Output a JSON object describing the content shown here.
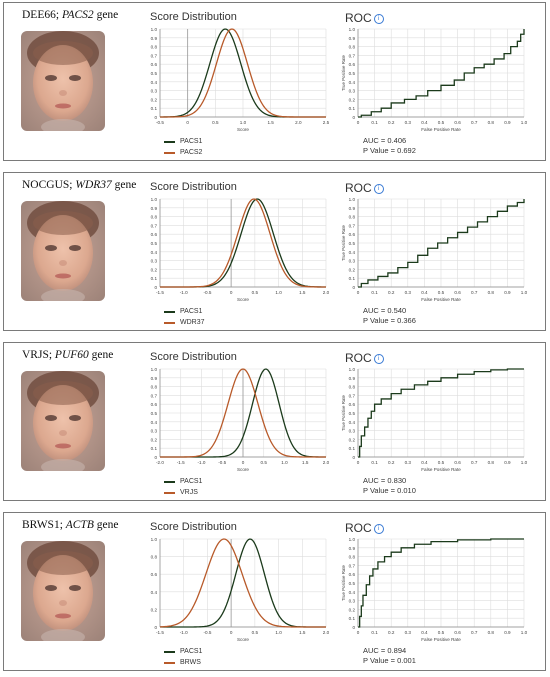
{
  "colors": {
    "pacs1": "#1b3a1b",
    "comparison": "#b85a2a",
    "grid": "#dddddd",
    "axis": "#888888"
  },
  "labels": {
    "score_distribution": "Score Distribution",
    "roc": "ROC",
    "info_icon": "info-icon",
    "score_axis": "Score",
    "fpr_axis": "False Positive Rate",
    "tpr_axis": "True Positive Rate",
    "auc_prefix": "AUC = ",
    "p_prefix": "P Value = "
  },
  "panels": [
    {
      "title_prefix": "DEE66; ",
      "title_gene": "PACS2",
      "title_suffix": " gene",
      "legend": [
        "PACS1",
        "PACS2"
      ],
      "auc": "0.406",
      "p_value": "0.692"
    },
    {
      "title_prefix": "NOCGUS; ",
      "title_gene": "WDR37",
      "title_suffix": " gene",
      "legend": [
        "PACS1",
        "WDR37"
      ],
      "auc": "0.540",
      "p_value": "0.366"
    },
    {
      "title_prefix": "VRJS; ",
      "title_gene": "PUF60",
      "title_suffix": " gene",
      "legend": [
        "PACS1",
        "VRJS"
      ],
      "auc": "0.830",
      "p_value": "0.010"
    },
    {
      "title_prefix": "BRWS1; ",
      "title_gene": "ACTB",
      "title_suffix": " gene",
      "legend": [
        "PACS1",
        "BRWS"
      ],
      "auc": "0.894",
      "p_value": "0.001"
    }
  ],
  "chart_data": [
    {
      "panel": 0,
      "type": "line",
      "title": "Score Distribution",
      "xlabel": "Score",
      "xticks": [
        "-0.5",
        "0",
        "0.5",
        "1.0",
        "1.5",
        "2.0",
        "2.5"
      ],
      "xlim": [
        -0.5,
        2.5
      ],
      "yticks": [
        "0",
        "0.1",
        "0.2",
        "0.3",
        "0.4",
        "0.5",
        "0.6",
        "0.7",
        "0.8",
        "0.9",
        "1.0"
      ],
      "ylim": [
        0,
        1.0
      ],
      "series": [
        {
          "name": "PACS1",
          "mean": 0.68,
          "sd": 0.28
        },
        {
          "name": "PACS2",
          "mean": 0.8,
          "sd": 0.28
        }
      ]
    },
    {
      "panel": 0,
      "type": "line",
      "title": "ROC",
      "xlabel": "False Positive Rate",
      "ylabel": "True Positive Rate",
      "xticks": [
        "0",
        "0.1",
        "0.2",
        "0.3",
        "0.4",
        "0.5",
        "0.6",
        "0.7",
        "0.8",
        "0.9",
        "1.0"
      ],
      "xlim": [
        0,
        1
      ],
      "yticks": [
        "0",
        "0.1",
        "0.2",
        "0.3",
        "0.4",
        "0.5",
        "0.6",
        "0.7",
        "0.8",
        "0.9",
        "1.0"
      ],
      "ylim": [
        0,
        1
      ],
      "x": [
        0,
        0.02,
        0.08,
        0.14,
        0.2,
        0.28,
        0.35,
        0.42,
        0.5,
        0.58,
        0.64,
        0.7,
        0.76,
        0.82,
        0.88,
        0.92,
        0.96,
        0.98,
        1.0
      ],
      "y": [
        0,
        0.02,
        0.06,
        0.1,
        0.16,
        0.2,
        0.24,
        0.3,
        0.36,
        0.42,
        0.5,
        0.56,
        0.6,
        0.66,
        0.72,
        0.8,
        0.86,
        0.94,
        1.0
      ]
    },
    {
      "panel": 1,
      "type": "line",
      "title": "Score Distribution",
      "xlabel": "Score",
      "xticks": [
        "-1.5",
        "-1.0",
        "-0.5",
        "0",
        "0.5",
        "1.0",
        "1.5",
        "2.0"
      ],
      "xlim": [
        -1.5,
        2.0
      ],
      "yticks": [
        "0",
        "0.1",
        "0.2",
        "0.3",
        "0.4",
        "0.5",
        "0.6",
        "0.7",
        "0.8",
        "0.9",
        "1.0"
      ],
      "ylim": [
        0,
        1.0
      ],
      "series": [
        {
          "name": "PACS1",
          "mean": 0.55,
          "sd": 0.34
        },
        {
          "name": "WDR37",
          "mean": 0.48,
          "sd": 0.34
        }
      ]
    },
    {
      "panel": 1,
      "type": "line",
      "title": "ROC",
      "xlabel": "False Positive Rate",
      "ylabel": "True Positive Rate",
      "xticks": [
        "0",
        "0.1",
        "0.2",
        "0.3",
        "0.4",
        "0.5",
        "0.6",
        "0.7",
        "0.8",
        "0.9",
        "1.0"
      ],
      "xlim": [
        0,
        1
      ],
      "yticks": [
        "0",
        "0.1",
        "0.2",
        "0.3",
        "0.4",
        "0.5",
        "0.6",
        "0.7",
        "0.8",
        "0.9",
        "1.0"
      ],
      "ylim": [
        0,
        1
      ],
      "x": [
        0,
        0.02,
        0.06,
        0.12,
        0.18,
        0.24,
        0.3,
        0.36,
        0.42,
        0.48,
        0.54,
        0.6,
        0.66,
        0.72,
        0.78,
        0.84,
        0.9,
        0.96,
        1.0
      ],
      "y": [
        0,
        0.04,
        0.08,
        0.12,
        0.16,
        0.22,
        0.28,
        0.36,
        0.44,
        0.5,
        0.56,
        0.62,
        0.68,
        0.74,
        0.8,
        0.86,
        0.92,
        0.96,
        1.0
      ]
    },
    {
      "panel": 2,
      "type": "line",
      "title": "Score Distribution",
      "xlabel": "Score",
      "xticks": [
        "-2.0",
        "-1.5",
        "-1.0",
        "-0.5",
        "0",
        "0.5",
        "1.0",
        "1.5",
        "2.0"
      ],
      "xlim": [
        -2.0,
        2.0
      ],
      "yticks": [
        "0",
        "0.1",
        "0.2",
        "0.3",
        "0.4",
        "0.5",
        "0.6",
        "0.7",
        "0.8",
        "0.9",
        "1.0"
      ],
      "ylim": [
        0,
        1.0
      ],
      "series": [
        {
          "name": "PACS1",
          "mean": 0.55,
          "sd": 0.32
        },
        {
          "name": "VRJS",
          "mean": 0.0,
          "sd": 0.36
        }
      ]
    },
    {
      "panel": 2,
      "type": "line",
      "title": "ROC",
      "xlabel": "False Positive Rate",
      "ylabel": "True Positive Rate",
      "xticks": [
        "0",
        "0.1",
        "0.2",
        "0.3",
        "0.4",
        "0.5",
        "0.6",
        "0.7",
        "0.8",
        "0.9",
        "1.0"
      ],
      "xlim": [
        0,
        1
      ],
      "yticks": [
        "0",
        "0.1",
        "0.2",
        "0.3",
        "0.4",
        "0.5",
        "0.6",
        "0.7",
        "0.8",
        "0.9",
        "1.0"
      ],
      "ylim": [
        0,
        1
      ],
      "x": [
        0,
        0.01,
        0.02,
        0.04,
        0.06,
        0.08,
        0.1,
        0.14,
        0.2,
        0.26,
        0.34,
        0.42,
        0.5,
        0.6,
        0.7,
        0.8,
        0.9,
        1.0
      ],
      "y": [
        0,
        0.12,
        0.24,
        0.34,
        0.44,
        0.52,
        0.6,
        0.66,
        0.72,
        0.77,
        0.82,
        0.86,
        0.9,
        0.94,
        0.97,
        0.99,
        1.0,
        1.0
      ]
    },
    {
      "panel": 3,
      "type": "line",
      "title": "Score Distribution",
      "xlabel": "Score",
      "xticks": [
        "-1.5",
        "-1.0",
        "-0.5",
        "0",
        "0.5",
        "1.0",
        "1.5",
        "2.0"
      ],
      "xlim": [
        -1.5,
        2.0
      ],
      "yticks": [
        "0",
        "0.2",
        "0.4",
        "0.6",
        "0.8",
        "1.0"
      ],
      "ylim": [
        0,
        1.0
      ],
      "series": [
        {
          "name": "PACS1",
          "mean": 0.4,
          "sd": 0.3
        },
        {
          "name": "BRWS",
          "mean": -0.15,
          "sd": 0.38
        }
      ]
    },
    {
      "panel": 3,
      "type": "line",
      "title": "ROC",
      "xlabel": "False Positive Rate",
      "ylabel": "True Positive Rate",
      "xticks": [
        "0",
        "0.1",
        "0.2",
        "0.3",
        "0.4",
        "0.5",
        "0.6",
        "0.7",
        "0.8",
        "0.9",
        "1.0"
      ],
      "xlim": [
        0,
        1
      ],
      "yticks": [
        "0",
        "0.1",
        "0.2",
        "0.3",
        "0.4",
        "0.5",
        "0.6",
        "0.7",
        "0.8",
        "0.9",
        "1.0"
      ],
      "ylim": [
        0,
        1
      ],
      "x": [
        0,
        0.01,
        0.02,
        0.03,
        0.05,
        0.07,
        0.09,
        0.12,
        0.16,
        0.2,
        0.26,
        0.34,
        0.44,
        0.6,
        0.8,
        1.0
      ],
      "y": [
        0,
        0.12,
        0.24,
        0.36,
        0.48,
        0.58,
        0.66,
        0.74,
        0.8,
        0.85,
        0.9,
        0.94,
        0.97,
        0.99,
        1.0,
        1.0
      ]
    }
  ]
}
